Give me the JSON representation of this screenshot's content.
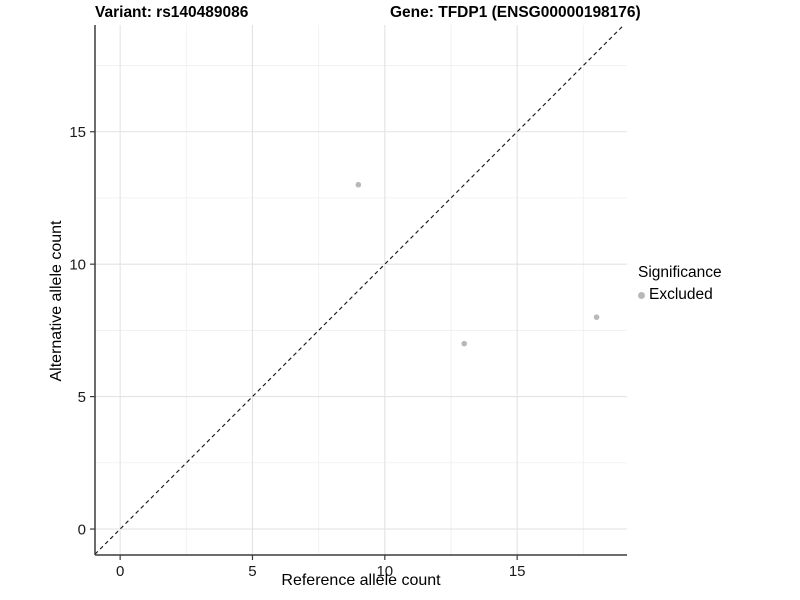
{
  "chart_data": {
    "type": "scatter",
    "title_left": "Variant: rs140489086",
    "title_right": "Gene: TFDP1 (ENSG00000198176)",
    "xlabel": "Reference allele count",
    "ylabel": "Alternative allele count",
    "xlim": [
      -0.95,
      19.15
    ],
    "ylim": [
      -0.98,
      19.03
    ],
    "xticks": [
      0,
      5,
      10,
      15
    ],
    "yticks": [
      0,
      5,
      10,
      15
    ],
    "xminor": [
      2.5,
      7.5,
      12.5,
      17.5
    ],
    "yminor": [
      2.5,
      7.5,
      12.5,
      17.5
    ],
    "grid": "major+minor",
    "identity_line": {
      "style": "dashed",
      "slope": 1,
      "intercept": 0
    },
    "series": [
      {
        "name": "Excluded",
        "points": [
          {
            "x": 9,
            "y": 13
          },
          {
            "x": 13,
            "y": 7
          },
          {
            "x": 18,
            "y": 8
          }
        ]
      }
    ],
    "legend": {
      "position": "right",
      "title": "Significance",
      "items": [
        {
          "label": "Excluded",
          "color": "#b8b8b8"
        }
      ]
    },
    "colors": {
      "point": "#b8b8b8",
      "grid_major": "#e3e3e3",
      "grid_minor": "#f1f1f1",
      "axis_line": "#3c3c3c",
      "dashed_line": "#1a1a1a",
      "tick_text": "#1a1a1a"
    }
  }
}
